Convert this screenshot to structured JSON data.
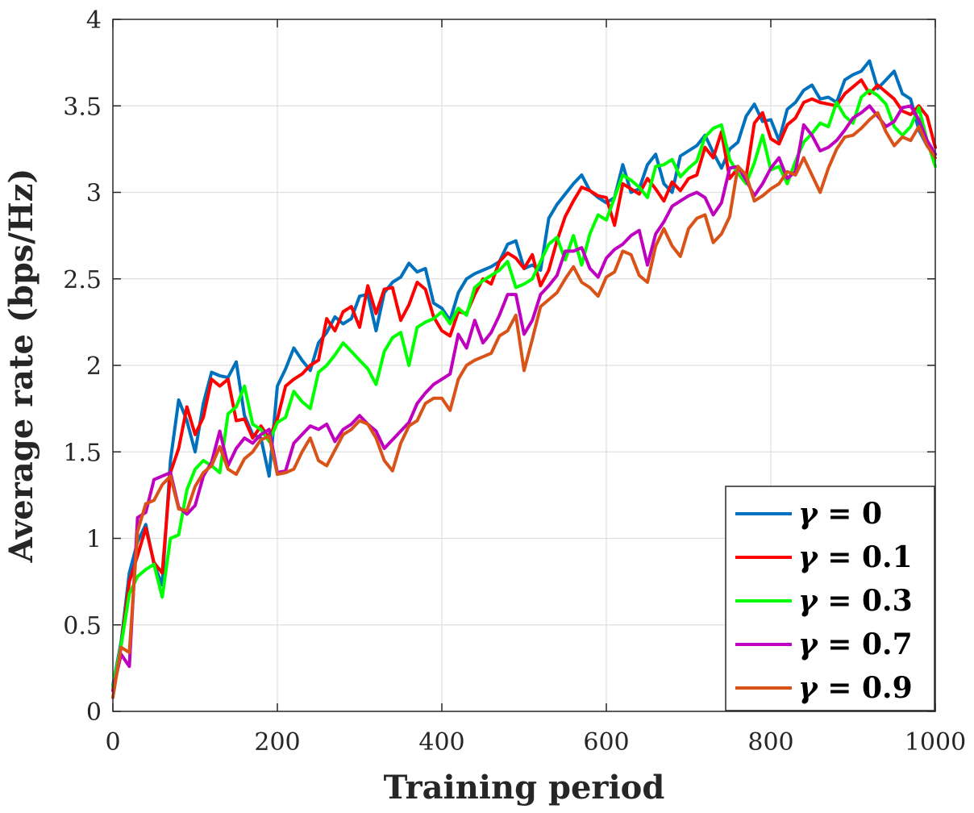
{
  "chart_data": {
    "type": "line",
    "xlabel": "Training period",
    "ylabel": "Average rate (bps/Hz)",
    "xlim": [
      0,
      1000
    ],
    "ylim": [
      0,
      4
    ],
    "xticks": [
      0,
      200,
      400,
      600,
      800,
      1000
    ],
    "yticks": [
      0,
      0.5,
      1,
      1.5,
      2,
      2.5,
      3,
      3.5,
      4
    ],
    "xtick_labels": [
      "0",
      "200",
      "400",
      "600",
      "800",
      "1000"
    ],
    "ytick_labels": [
      "0",
      "0.5",
      "1",
      "1.5",
      "2",
      "2.5",
      "3",
      "3.5",
      "4"
    ],
    "grid": true,
    "legend_position": "bottom-right",
    "series": [
      {
        "name": "γ = 0",
        "symbol": "γ",
        "value_label": "0",
        "color": "#0072BD",
        "x": [
          0,
          10,
          20,
          30,
          40,
          50,
          60,
          70,
          80,
          90,
          100,
          110,
          120,
          130,
          140,
          150,
          160,
          170,
          180,
          190,
          200,
          210,
          220,
          230,
          240,
          250,
          260,
          270,
          280,
          290,
          300,
          310,
          320,
          330,
          340,
          350,
          360,
          370,
          380,
          390,
          400,
          410,
          420,
          430,
          440,
          450,
          460,
          470,
          480,
          490,
          500,
          510,
          520,
          530,
          540,
          550,
          560,
          570,
          580,
          590,
          600,
          610,
          620,
          630,
          640,
          650,
          660,
          670,
          680,
          690,
          700,
          710,
          720,
          730,
          740,
          750,
          760,
          770,
          780,
          790,
          800,
          810,
          820,
          830,
          840,
          850,
          860,
          870,
          880,
          890,
          900,
          910,
          920,
          930,
          940,
          950,
          960,
          970,
          980,
          990,
          1000
        ],
        "y": [
          0.15,
          0.4,
          0.8,
          0.98,
          1.08,
          0.85,
          0.73,
          1.45,
          1.8,
          1.68,
          1.5,
          1.78,
          1.96,
          1.94,
          1.93,
          2.02,
          1.71,
          1.6,
          1.58,
          1.36,
          1.88,
          1.98,
          2.1,
          2.03,
          1.97,
          2.13,
          2.19,
          2.28,
          2.24,
          2.27,
          2.4,
          2.41,
          2.2,
          2.42,
          2.48,
          2.51,
          2.59,
          2.54,
          2.56,
          2.36,
          2.33,
          2.26,
          2.42,
          2.5,
          2.53,
          2.55,
          2.57,
          2.6,
          2.7,
          2.72,
          2.56,
          2.58,
          2.55,
          2.85,
          2.93,
          2.99,
          3.05,
          3.1,
          3.01,
          2.97,
          2.94,
          2.97,
          3.16,
          3.0,
          3.02,
          3.16,
          3.22,
          3.05,
          3.0,
          3.21,
          3.24,
          3.27,
          3.33,
          3.23,
          3.14,
          3.25,
          3.29,
          3.44,
          3.51,
          3.41,
          3.42,
          3.3,
          3.48,
          3.52,
          3.59,
          3.62,
          3.54,
          3.55,
          3.52,
          3.65,
          3.68,
          3.7,
          3.76,
          3.6,
          3.65,
          3.7,
          3.57,
          3.54,
          3.36,
          3.27,
          3.22
        ]
      },
      {
        "name": "γ = 0.1",
        "symbol": "γ",
        "value_label": "0.1",
        "color": "#FF0000",
        "x": [
          0,
          10,
          20,
          30,
          40,
          50,
          60,
          70,
          80,
          90,
          100,
          110,
          120,
          130,
          140,
          150,
          160,
          170,
          180,
          190,
          200,
          210,
          220,
          230,
          240,
          250,
          260,
          270,
          280,
          290,
          300,
          310,
          320,
          330,
          340,
          350,
          360,
          370,
          380,
          390,
          400,
          410,
          420,
          430,
          440,
          450,
          460,
          470,
          480,
          490,
          500,
          510,
          520,
          530,
          540,
          550,
          560,
          570,
          580,
          590,
          600,
          610,
          620,
          630,
          640,
          650,
          660,
          670,
          680,
          690,
          700,
          710,
          720,
          730,
          740,
          750,
          760,
          770,
          780,
          790,
          800,
          810,
          820,
          830,
          840,
          850,
          860,
          870,
          880,
          890,
          900,
          910,
          920,
          930,
          940,
          950,
          960,
          970,
          980,
          990,
          1000
        ],
        "y": [
          0.12,
          0.38,
          0.75,
          0.9,
          1.06,
          0.86,
          0.8,
          1.38,
          1.52,
          1.76,
          1.6,
          1.7,
          1.92,
          1.88,
          1.92,
          1.68,
          1.69,
          1.58,
          1.65,
          1.58,
          1.69,
          1.88,
          1.92,
          1.95,
          2.0,
          2.03,
          2.27,
          2.2,
          2.31,
          2.34,
          2.22,
          2.46,
          2.3,
          2.44,
          2.45,
          2.26,
          2.35,
          2.48,
          2.44,
          2.28,
          2.2,
          2.17,
          2.31,
          2.3,
          2.41,
          2.5,
          2.47,
          2.6,
          2.65,
          2.62,
          2.56,
          2.64,
          2.46,
          2.55,
          2.72,
          2.86,
          2.95,
          3.03,
          3.01,
          2.98,
          2.97,
          2.81,
          3.05,
          3.02,
          2.99,
          3.08,
          3.02,
          2.95,
          3.06,
          3.01,
          3.08,
          3.1,
          3.26,
          3.2,
          3.35,
          3.08,
          3.14,
          3.09,
          3.4,
          3.46,
          3.31,
          3.28,
          3.39,
          3.43,
          3.52,
          3.54,
          3.52,
          3.51,
          3.5,
          3.57,
          3.61,
          3.65,
          3.57,
          3.62,
          3.58,
          3.54,
          3.47,
          3.45,
          3.5,
          3.44,
          3.26
        ]
      },
      {
        "name": "γ = 0.3",
        "symbol": "γ",
        "value_label": "0.3",
        "color": "#00FF00",
        "x": [
          0,
          10,
          20,
          30,
          40,
          50,
          60,
          70,
          80,
          90,
          100,
          110,
          120,
          130,
          140,
          150,
          160,
          170,
          180,
          190,
          200,
          210,
          220,
          230,
          240,
          250,
          260,
          270,
          280,
          290,
          300,
          310,
          320,
          330,
          340,
          350,
          360,
          370,
          380,
          390,
          400,
          410,
          420,
          430,
          440,
          450,
          460,
          470,
          480,
          490,
          500,
          510,
          520,
          530,
          540,
          550,
          560,
          570,
          580,
          590,
          600,
          610,
          620,
          630,
          640,
          650,
          660,
          670,
          680,
          690,
          700,
          710,
          720,
          730,
          740,
          750,
          760,
          770,
          780,
          790,
          800,
          810,
          820,
          830,
          840,
          850,
          860,
          870,
          880,
          890,
          900,
          910,
          920,
          930,
          940,
          950,
          960,
          970,
          980,
          990,
          1000
        ],
        "y": [
          0.14,
          0.38,
          0.68,
          0.78,
          0.82,
          0.85,
          0.66,
          1.0,
          1.02,
          1.28,
          1.4,
          1.45,
          1.42,
          1.38,
          1.72,
          1.76,
          1.88,
          1.66,
          1.63,
          1.56,
          1.67,
          1.7,
          1.85,
          1.79,
          1.75,
          1.96,
          2.0,
          2.06,
          2.13,
          2.08,
          2.03,
          1.98,
          1.89,
          2.08,
          2.16,
          2.19,
          2.0,
          2.22,
          2.25,
          2.27,
          2.31,
          2.24,
          2.33,
          2.29,
          2.45,
          2.49,
          2.52,
          2.55,
          2.6,
          2.45,
          2.47,
          2.5,
          2.6,
          2.7,
          2.74,
          2.61,
          2.75,
          2.58,
          2.76,
          2.87,
          2.84,
          2.97,
          3.1,
          3.07,
          3.03,
          2.97,
          3.15,
          3.16,
          3.19,
          3.09,
          3.14,
          3.18,
          3.32,
          3.37,
          3.39,
          3.19,
          3.11,
          3.05,
          3.17,
          3.33,
          3.13,
          3.15,
          3.05,
          3.18,
          3.29,
          3.34,
          3.4,
          3.38,
          3.52,
          3.44,
          3.4,
          3.55,
          3.59,
          3.56,
          3.51,
          3.38,
          3.33,
          3.38,
          3.49,
          3.3,
          3.15
        ]
      },
      {
        "name": "γ = 0.7",
        "symbol": "γ",
        "value_label": "0.7",
        "color": "#BF00BF",
        "x": [
          0,
          10,
          20,
          30,
          40,
          50,
          60,
          70,
          80,
          90,
          100,
          110,
          120,
          130,
          140,
          150,
          160,
          170,
          180,
          190,
          200,
          210,
          220,
          230,
          240,
          250,
          260,
          270,
          280,
          290,
          300,
          310,
          320,
          330,
          340,
          350,
          360,
          370,
          380,
          390,
          400,
          410,
          420,
          430,
          440,
          450,
          460,
          470,
          480,
          490,
          500,
          510,
          520,
          530,
          540,
          550,
          560,
          570,
          580,
          590,
          600,
          610,
          620,
          630,
          640,
          650,
          660,
          670,
          680,
          690,
          700,
          710,
          720,
          730,
          740,
          750,
          760,
          770,
          780,
          790,
          800,
          810,
          820,
          830,
          840,
          850,
          860,
          870,
          880,
          890,
          900,
          910,
          920,
          930,
          940,
          950,
          960,
          970,
          980,
          990,
          1000
        ],
        "y": [
          0.12,
          0.33,
          0.26,
          1.12,
          1.15,
          1.34,
          1.36,
          1.38,
          1.18,
          1.14,
          1.19,
          1.36,
          1.44,
          1.62,
          1.42,
          1.52,
          1.58,
          1.55,
          1.6,
          1.63,
          1.38,
          1.39,
          1.55,
          1.6,
          1.65,
          1.63,
          1.66,
          1.56,
          1.63,
          1.66,
          1.71,
          1.66,
          1.62,
          1.52,
          1.57,
          1.62,
          1.67,
          1.78,
          1.84,
          1.89,
          1.92,
          1.95,
          2.18,
          2.1,
          2.26,
          2.13,
          2.19,
          2.29,
          2.41,
          2.41,
          2.18,
          2.26,
          2.41,
          2.46,
          2.52,
          2.66,
          2.66,
          2.68,
          2.56,
          2.51,
          2.62,
          2.67,
          2.7,
          2.75,
          2.78,
          2.58,
          2.76,
          2.83,
          2.92,
          2.95,
          2.98,
          3.0,
          2.97,
          2.87,
          2.94,
          3.14,
          3.15,
          3.07,
          2.98,
          3.05,
          3.14,
          3.2,
          3.08,
          3.12,
          3.39,
          3.33,
          3.24,
          3.26,
          3.3,
          3.36,
          3.43,
          3.46,
          3.5,
          3.44,
          3.38,
          3.41,
          3.49,
          3.5,
          3.42,
          3.3,
          3.22
        ]
      },
      {
        "name": "γ = 0.9",
        "symbol": "γ",
        "value_label": "0.9",
        "color": "#D95319",
        "x": [
          0,
          10,
          20,
          30,
          40,
          50,
          60,
          70,
          80,
          90,
          100,
          110,
          120,
          130,
          140,
          150,
          160,
          170,
          180,
          190,
          200,
          210,
          220,
          230,
          240,
          250,
          260,
          270,
          280,
          290,
          300,
          310,
          320,
          330,
          340,
          350,
          360,
          370,
          380,
          390,
          400,
          410,
          420,
          430,
          440,
          450,
          460,
          470,
          480,
          490,
          500,
          510,
          520,
          530,
          540,
          550,
          560,
          570,
          580,
          590,
          600,
          610,
          620,
          630,
          640,
          650,
          660,
          670,
          680,
          690,
          700,
          710,
          720,
          730,
          740,
          750,
          760,
          770,
          780,
          790,
          800,
          810,
          820,
          830,
          840,
          850,
          860,
          870,
          880,
          890,
          900,
          910,
          920,
          930,
          940,
          950,
          960,
          970,
          980,
          990,
          1000
        ],
        "y": [
          0.08,
          0.37,
          0.34,
          1.04,
          1.2,
          1.22,
          1.31,
          1.36,
          1.17,
          1.16,
          1.3,
          1.38,
          1.42,
          1.53,
          1.4,
          1.37,
          1.46,
          1.5,
          1.57,
          1.59,
          1.37,
          1.38,
          1.4,
          1.5,
          1.58,
          1.45,
          1.42,
          1.51,
          1.6,
          1.63,
          1.68,
          1.66,
          1.58,
          1.45,
          1.39,
          1.55,
          1.65,
          1.68,
          1.78,
          1.81,
          1.81,
          1.74,
          1.92,
          2.0,
          2.03,
          2.05,
          2.07,
          2.17,
          2.2,
          2.29,
          1.97,
          2.15,
          2.34,
          2.38,
          2.42,
          2.5,
          2.57,
          2.48,
          2.45,
          2.4,
          2.51,
          2.54,
          2.66,
          2.64,
          2.52,
          2.48,
          2.69,
          2.79,
          2.69,
          2.63,
          2.79,
          2.85,
          2.87,
          2.71,
          2.76,
          2.86,
          3.15,
          3.1,
          2.95,
          2.98,
          3.02,
          3.05,
          3.12,
          3.1,
          3.2,
          3.1,
          3.0,
          3.14,
          3.25,
          3.32,
          3.33,
          3.37,
          3.42,
          3.46,
          3.35,
          3.27,
          3.32,
          3.3,
          3.38,
          3.27,
          3.2
        ]
      }
    ]
  }
}
